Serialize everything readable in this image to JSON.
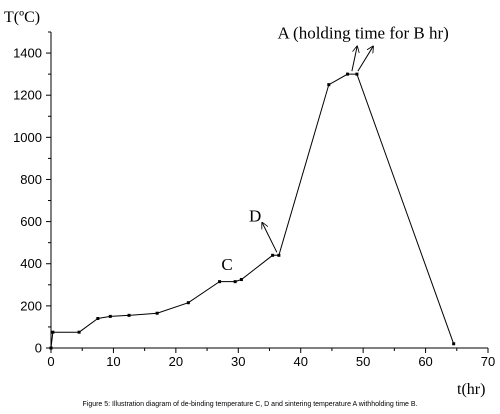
{
  "chart_data": {
    "type": "line",
    "xlabel": "t(hr)",
    "ylabel": "T(ºC)",
    "xlim": [
      0,
      70
    ],
    "ylim": [
      0,
      1500
    ],
    "x_ticks": [
      0,
      10,
      20,
      30,
      40,
      50,
      60,
      70
    ],
    "y_ticks": [
      0,
      200,
      400,
      600,
      800,
      1000,
      1200,
      1400
    ],
    "grid": false,
    "series": [
      {
        "color": "#000000",
        "points": [
          [
            0,
            0
          ],
          [
            0.3,
            75
          ],
          [
            4.5,
            75
          ],
          [
            7.5,
            140
          ],
          [
            9.5,
            150
          ],
          [
            12.5,
            155
          ],
          [
            17,
            165
          ],
          [
            22,
            215
          ],
          [
            27,
            315
          ],
          [
            29.5,
            315
          ],
          [
            30.5,
            325
          ],
          [
            35.5,
            440
          ],
          [
            36.5,
            440
          ],
          [
            44.5,
            1250
          ],
          [
            47.5,
            1300
          ],
          [
            49,
            1300
          ],
          [
            64.5,
            20
          ]
        ]
      }
    ],
    "annotations": [
      {
        "id": "A",
        "text": "A (holding time for B hr)",
        "point": [
          48.2,
          1300
        ],
        "text_at": [
          50,
          1470
        ]
      },
      {
        "id": "C",
        "text": "C",
        "point": [
          29,
          330
        ],
        "text_at": [
          28.2,
          370
        ]
      },
      {
        "id": "D",
        "text": "D",
        "point": [
          36.5,
          440
        ],
        "text_at": [
          32.7,
          600
        ]
      }
    ]
  },
  "caption": "Figure 5: Illustration diagram of de-binding temperature C, D and sintering temperature A withholding time B."
}
